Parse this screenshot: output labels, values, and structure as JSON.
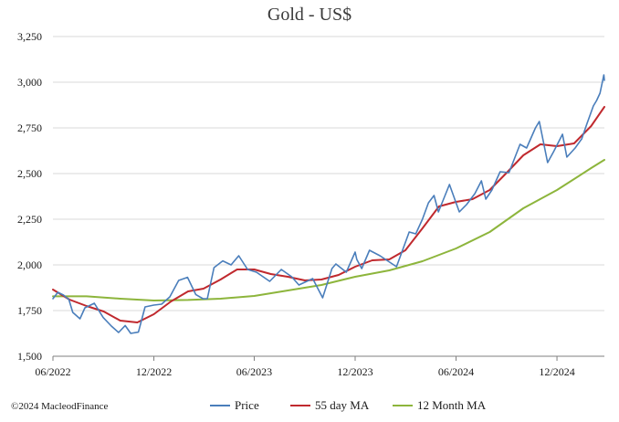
{
  "chart_data": {
    "type": "line",
    "title": "Gold - US$",
    "xlabel": "",
    "ylabel": "",
    "xlim": [
      "2022-06-01",
      "2025-02-25"
    ],
    "ylim": [
      1500,
      3250
    ],
    "x_ticks": [
      {
        "label": "06/2022",
        "date": "2022-06-01"
      },
      {
        "label": "12/2022",
        "date": "2022-12-01"
      },
      {
        "label": "06/2023",
        "date": "2023-06-01"
      },
      {
        "label": "12/2023",
        "date": "2023-12-01"
      },
      {
        "label": "06/2024",
        "date": "2024-06-01"
      },
      {
        "label": "12/2024",
        "date": "2024-12-01"
      }
    ],
    "y_ticks": [
      {
        "label": "1,500",
        "value": 1500
      },
      {
        "label": "1,750",
        "value": 1750
      },
      {
        "label": "2,000",
        "value": 2000
      },
      {
        "label": "2,250",
        "value": 2250
      },
      {
        "label": "2,500",
        "value": 2500
      },
      {
        "label": "2,750",
        "value": 2750
      },
      {
        "label": "3,000",
        "value": 3000
      },
      {
        "label": "3,250",
        "value": 3250
      }
    ],
    "grid": "horizontal",
    "legend_position": "bottom",
    "series": [
      {
        "name": "Price",
        "color": "#4a7ebb",
        "points": [
          [
            "2022-06-01",
            1815
          ],
          [
            "2022-06-10",
            1850
          ],
          [
            "2022-06-20",
            1835
          ],
          [
            "2022-06-30",
            1810
          ],
          [
            "2022-07-07",
            1740
          ],
          [
            "2022-07-20",
            1705
          ],
          [
            "2022-07-29",
            1765
          ],
          [
            "2022-08-15",
            1790
          ],
          [
            "2022-08-31",
            1712
          ],
          [
            "2022-09-15",
            1665
          ],
          [
            "2022-09-28",
            1630
          ],
          [
            "2022-10-10",
            1668
          ],
          [
            "2022-10-20",
            1625
          ],
          [
            "2022-11-03",
            1632
          ],
          [
            "2022-11-15",
            1770
          ],
          [
            "2022-12-01",
            1780
          ],
          [
            "2022-12-15",
            1785
          ],
          [
            "2022-12-30",
            1825
          ],
          [
            "2023-01-15",
            1915
          ],
          [
            "2023-01-31",
            1932
          ],
          [
            "2023-02-15",
            1838
          ],
          [
            "2023-02-28",
            1815
          ],
          [
            "2023-03-08",
            1815
          ],
          [
            "2023-03-20",
            1985
          ],
          [
            "2023-04-05",
            2022
          ],
          [
            "2023-04-20",
            2000
          ],
          [
            "2023-05-04",
            2050
          ],
          [
            "2023-05-20",
            1975
          ],
          [
            "2023-06-05",
            1960
          ],
          [
            "2023-06-29",
            1910
          ],
          [
            "2023-07-20",
            1975
          ],
          [
            "2023-08-08",
            1935
          ],
          [
            "2023-08-21",
            1890
          ],
          [
            "2023-09-15",
            1925
          ],
          [
            "2023-10-03",
            1820
          ],
          [
            "2023-10-20",
            1980
          ],
          [
            "2023-10-27",
            2005
          ],
          [
            "2023-11-15",
            1960
          ],
          [
            "2023-12-01",
            2070
          ],
          [
            "2023-12-04",
            2030
          ],
          [
            "2023-12-13",
            1980
          ],
          [
            "2023-12-27",
            2080
          ],
          [
            "2024-01-15",
            2050
          ],
          [
            "2024-02-14",
            1990
          ],
          [
            "2024-03-08",
            2180
          ],
          [
            "2024-03-20",
            2170
          ],
          [
            "2024-04-01",
            2250
          ],
          [
            "2024-04-12",
            2340
          ],
          [
            "2024-04-22",
            2380
          ],
          [
            "2024-04-30",
            2290
          ],
          [
            "2024-05-20",
            2440
          ],
          [
            "2024-06-07",
            2290
          ],
          [
            "2024-06-20",
            2330
          ],
          [
            "2024-07-05",
            2390
          ],
          [
            "2024-07-17",
            2460
          ],
          [
            "2024-07-25",
            2360
          ],
          [
            "2024-08-05",
            2410
          ],
          [
            "2024-08-20",
            2510
          ],
          [
            "2024-09-05",
            2505
          ],
          [
            "2024-09-25",
            2660
          ],
          [
            "2024-10-07",
            2640
          ],
          [
            "2024-10-23",
            2750
          ],
          [
            "2024-10-30",
            2785
          ],
          [
            "2024-11-14",
            2560
          ],
          [
            "2024-11-25",
            2620
          ],
          [
            "2024-12-11",
            2715
          ],
          [
            "2024-12-19",
            2590
          ],
          [
            "2025-01-03",
            2640
          ],
          [
            "2025-01-15",
            2690
          ],
          [
            "2025-01-24",
            2770
          ],
          [
            "2025-02-05",
            2870
          ],
          [
            "2025-02-11",
            2900
          ],
          [
            "2025-02-17",
            2940
          ],
          [
            "2025-02-24",
            3040
          ],
          [
            "2025-02-25",
            3010
          ]
        ]
      },
      {
        "name": "55 day MA",
        "color": "#c0292e",
        "points": [
          [
            "2022-06-01",
            1865
          ],
          [
            "2022-07-01",
            1810
          ],
          [
            "2022-08-01",
            1775
          ],
          [
            "2022-09-01",
            1745
          ],
          [
            "2022-10-01",
            1695
          ],
          [
            "2022-11-01",
            1685
          ],
          [
            "2022-12-01",
            1730
          ],
          [
            "2023-01-01",
            1800
          ],
          [
            "2023-02-01",
            1855
          ],
          [
            "2023-03-01",
            1870
          ],
          [
            "2023-04-01",
            1920
          ],
          [
            "2023-05-01",
            1975
          ],
          [
            "2023-06-01",
            1975
          ],
          [
            "2023-07-01",
            1950
          ],
          [
            "2023-08-01",
            1935
          ],
          [
            "2023-09-01",
            1915
          ],
          [
            "2023-10-01",
            1920
          ],
          [
            "2023-11-01",
            1945
          ],
          [
            "2023-12-01",
            1990
          ],
          [
            "2024-01-01",
            2025
          ],
          [
            "2024-02-01",
            2030
          ],
          [
            "2024-03-01",
            2080
          ],
          [
            "2024-04-01",
            2200
          ],
          [
            "2024-05-01",
            2320
          ],
          [
            "2024-06-01",
            2345
          ],
          [
            "2024-07-01",
            2360
          ],
          [
            "2024-08-01",
            2410
          ],
          [
            "2024-09-01",
            2505
          ],
          [
            "2024-10-01",
            2600
          ],
          [
            "2024-11-01",
            2660
          ],
          [
            "2024-12-01",
            2650
          ],
          [
            "2025-01-01",
            2665
          ],
          [
            "2025-02-01",
            2760
          ],
          [
            "2025-02-25",
            2865
          ]
        ]
      },
      {
        "name": "12 Month MA",
        "color": "#8db53c",
        "points": [
          [
            "2022-06-01",
            1828
          ],
          [
            "2022-08-01",
            1828
          ],
          [
            "2022-10-01",
            1815
          ],
          [
            "2022-12-01",
            1805
          ],
          [
            "2023-02-01",
            1808
          ],
          [
            "2023-04-01",
            1815
          ],
          [
            "2023-06-01",
            1830
          ],
          [
            "2023-08-01",
            1860
          ],
          [
            "2023-10-01",
            1890
          ],
          [
            "2023-12-01",
            1935
          ],
          [
            "2024-02-01",
            1970
          ],
          [
            "2024-04-01",
            2020
          ],
          [
            "2024-06-01",
            2090
          ],
          [
            "2024-08-01",
            2180
          ],
          [
            "2024-10-01",
            2310
          ],
          [
            "2024-12-01",
            2410
          ],
          [
            "2025-02-01",
            2530
          ],
          [
            "2025-02-25",
            2575
          ]
        ]
      }
    ]
  },
  "footer": {
    "copyright": "©2024 MacleodFinance"
  }
}
